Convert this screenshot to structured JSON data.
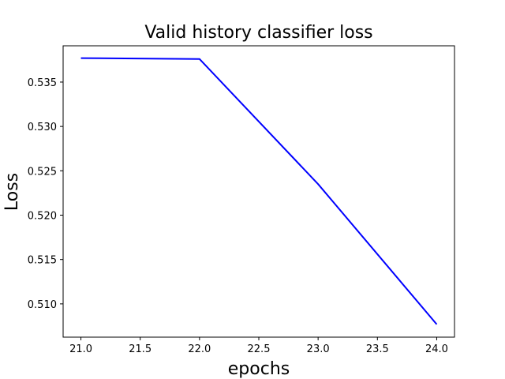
{
  "chart_data": {
    "type": "line",
    "title": "Valid history classifier loss",
    "xlabel": "epochs",
    "ylabel": "Loss",
    "xlim": [
      20.85,
      24.15
    ],
    "ylim": [
      0.50625,
      0.53909
    ],
    "xticks": [
      21.0,
      21.5,
      22.0,
      22.5,
      23.0,
      23.5,
      24.0
    ],
    "xtick_labels": [
      "21.0",
      "21.5",
      "22.0",
      "22.5",
      "23.0",
      "23.5",
      "24.0"
    ],
    "yticks": [
      0.51,
      0.515,
      0.52,
      0.525,
      0.53,
      0.535
    ],
    "ytick_labels": [
      "0.510",
      "0.515",
      "0.520",
      "0.525",
      "0.530",
      "0.535"
    ],
    "grid": false,
    "series": [
      {
        "color": "#0000ff",
        "x": [
          21,
          22,
          23,
          24
        ],
        "y": [
          0.5377,
          0.5376,
          0.5235,
          0.5077
        ]
      }
    ]
  }
}
